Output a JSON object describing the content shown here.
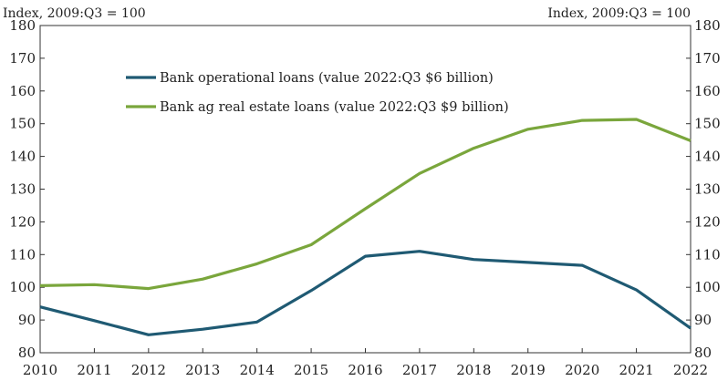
{
  "chart_data": {
    "type": "line",
    "title": "",
    "xlabel": "",
    "ylabel_left": "Index, 2009:Q3 = 100",
    "ylabel_right": "Index, 2009:Q3 = 100",
    "x": [
      2010,
      2011,
      2012,
      2013,
      2014,
      2015,
      2016,
      2017,
      2018,
      2019,
      2020,
      2021,
      2022
    ],
    "x_tick_labels": [
      "2010",
      "2011",
      "2012",
      "2013",
      "2014",
      "2015",
      "2016",
      "2017",
      "2018",
      "2019",
      "2020",
      "2021",
      "2022"
    ],
    "ylim": [
      80,
      180
    ],
    "y_ticks": [
      80,
      90,
      100,
      110,
      120,
      130,
      140,
      150,
      160,
      170,
      180
    ],
    "y_tick_labels": [
      "80",
      "90",
      "100",
      "110",
      "120",
      "130",
      "140",
      "150",
      "160",
      "170",
      "180"
    ],
    "grid": false,
    "legend_position": "top-left",
    "series": [
      {
        "name": "Bank operational loans (value 2022:Q3 $6 billion)",
        "color": "#1f5a73",
        "values": [
          94,
          89.8,
          85.5,
          87.2,
          89.4,
          99,
          109.5,
          111,
          108.5,
          107.6,
          106.7,
          99.2,
          87.5
        ]
      },
      {
        "name": "Bank ag real estate loans (value 2022:Q3 $9 billion)",
        "color": "#7aa63c",
        "values": [
          100.5,
          100.8,
          99.6,
          102.5,
          107.2,
          113,
          124,
          134.8,
          142.5,
          148.3,
          151,
          151.3,
          144.8
        ]
      }
    ]
  }
}
